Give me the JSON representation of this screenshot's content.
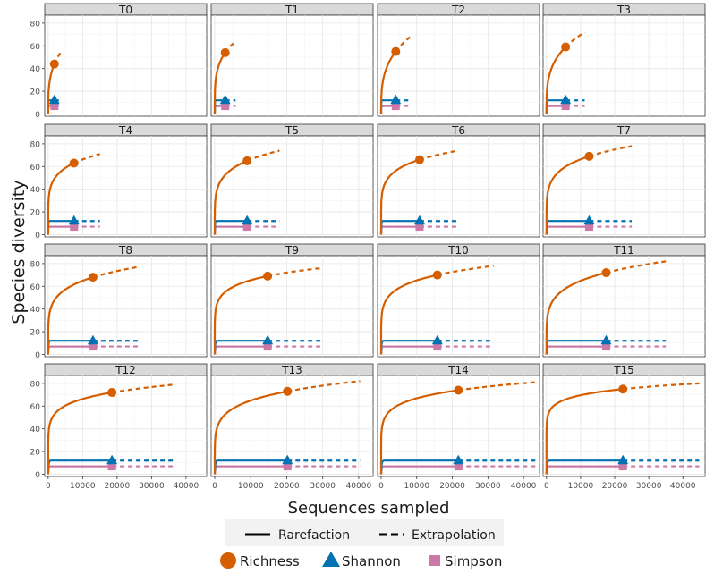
{
  "chart_data": {
    "type": "line",
    "ylabel": "Species diversity",
    "xlabel": "Sequences sampled",
    "legend_linetype": [
      {
        "label": "Rarefaction",
        "style": "solid"
      },
      {
        "label": "Extrapolation",
        "style": "dashed"
      }
    ],
    "legend_series": [
      {
        "name": "Richness",
        "color": "#D55E00",
        "marker": "circle"
      },
      {
        "name": "Shannon",
        "color": "#0072B2",
        "marker": "triangle"
      },
      {
        "name": "Simpson",
        "color": "#CC79A7",
        "marker": "square"
      }
    ],
    "rows": [
      {
        "ylim": [
          -2,
          87
        ],
        "yticks": [
          "0",
          "20",
          "40",
          "60",
          "80"
        ],
        "yvalues": [
          0,
          20,
          40,
          60,
          80
        ]
      },
      {
        "ylim": [
          -2,
          87
        ],
        "yticks": [
          "0",
          "20",
          "40",
          "60",
          "80"
        ],
        "yvalues": [
          0,
          20,
          40,
          60,
          80
        ]
      },
      {
        "ylim": [
          -2,
          87
        ],
        "yticks": [
          "0",
          "20",
          "40",
          "60",
          "80"
        ],
        "yvalues": [
          0,
          20,
          40,
          60,
          80
        ]
      },
      {
        "ylim": [
          -2,
          87
        ],
        "yticks": [
          "0",
          "20",
          "40",
          "60",
          "80"
        ],
        "yvalues": [
          0,
          20,
          40,
          60,
          80
        ]
      }
    ],
    "columns": [
      {
        "xlim": [
          -1000,
          46000
        ],
        "xticks": [
          "0",
          "10000",
          "20000",
          "30000",
          "40000"
        ],
        "xvalues": [
          0,
          10000,
          20000,
          30000,
          40000
        ]
      },
      {
        "xlim": [
          -1000,
          44000
        ],
        "xticks": [
          "0",
          "10000",
          "20000",
          "30000",
          "40000"
        ],
        "xvalues": [
          0,
          10000,
          20000,
          30000,
          40000
        ]
      },
      {
        "xlim": [
          -1000,
          44500
        ],
        "xticks": [
          "0",
          "10000",
          "20000",
          "30000",
          "40000"
        ],
        "xvalues": [
          0,
          10000,
          20000,
          30000,
          40000
        ]
      },
      {
        "xlim": [
          -1000,
          46500
        ],
        "xticks": [
          "0",
          "10000",
          "20000",
          "30000",
          "40000"
        ],
        "xvalues": [
          0,
          10000,
          20000,
          30000,
          40000
        ]
      }
    ],
    "panels": [
      {
        "title": "T0",
        "n": 1800,
        "end": 3600,
        "richness": 44,
        "richness_end": 54,
        "shannon": 12,
        "simpson": 7
      },
      {
        "title": "T1",
        "n": 2900,
        "end": 5800,
        "richness": 54,
        "richness_end": 64,
        "shannon": 12,
        "simpson": 7
      },
      {
        "title": "T2",
        "n": 4100,
        "end": 8200,
        "richness": 55,
        "richness_end": 68,
        "shannon": 12,
        "simpson": 7
      },
      {
        "title": "T3",
        "n": 5600,
        "end": 11200,
        "richness": 59,
        "richness_end": 72,
        "shannon": 12,
        "simpson": 7
      },
      {
        "title": "T4",
        "n": 7500,
        "end": 15000,
        "richness": 63,
        "richness_end": 71,
        "shannon": 12,
        "simpson": 7
      },
      {
        "title": "T5",
        "n": 9000,
        "end": 18000,
        "richness": 65,
        "richness_end": 74,
        "shannon": 12,
        "simpson": 7
      },
      {
        "title": "T6",
        "n": 10800,
        "end": 21600,
        "richness": 66,
        "richness_end": 74,
        "shannon": 12,
        "simpson": 7
      },
      {
        "title": "T7",
        "n": 12500,
        "end": 25000,
        "richness": 69,
        "richness_end": 78,
        "shannon": 12,
        "simpson": 7
      },
      {
        "title": "T8",
        "n": 13000,
        "end": 26000,
        "richness": 68,
        "richness_end": 77,
        "shannon": 12,
        "simpson": 7
      },
      {
        "title": "T9",
        "n": 14700,
        "end": 29400,
        "richness": 69,
        "richness_end": 76,
        "shannon": 12,
        "simpson": 7
      },
      {
        "title": "T10",
        "n": 15800,
        "end": 31600,
        "richness": 70,
        "richness_end": 78,
        "shannon": 12,
        "simpson": 7
      },
      {
        "title": "T11",
        "n": 17500,
        "end": 35000,
        "richness": 72,
        "richness_end": 82,
        "shannon": 12,
        "simpson": 7
      },
      {
        "title": "T12",
        "n": 18500,
        "end": 37000,
        "richness": 72,
        "richness_end": 79,
        "shannon": 12,
        "simpson": 7
      },
      {
        "title": "T13",
        "n": 20200,
        "end": 40400,
        "richness": 73,
        "richness_end": 82,
        "shannon": 12,
        "simpson": 7
      },
      {
        "title": "T14",
        "n": 21700,
        "end": 43400,
        "richness": 74,
        "richness_end": 81,
        "shannon": 12,
        "simpson": 7
      },
      {
        "title": "T15",
        "n": 22400,
        "end": 44800,
        "richness": 75,
        "richness_end": 80,
        "shannon": 12,
        "simpson": 7
      }
    ]
  }
}
